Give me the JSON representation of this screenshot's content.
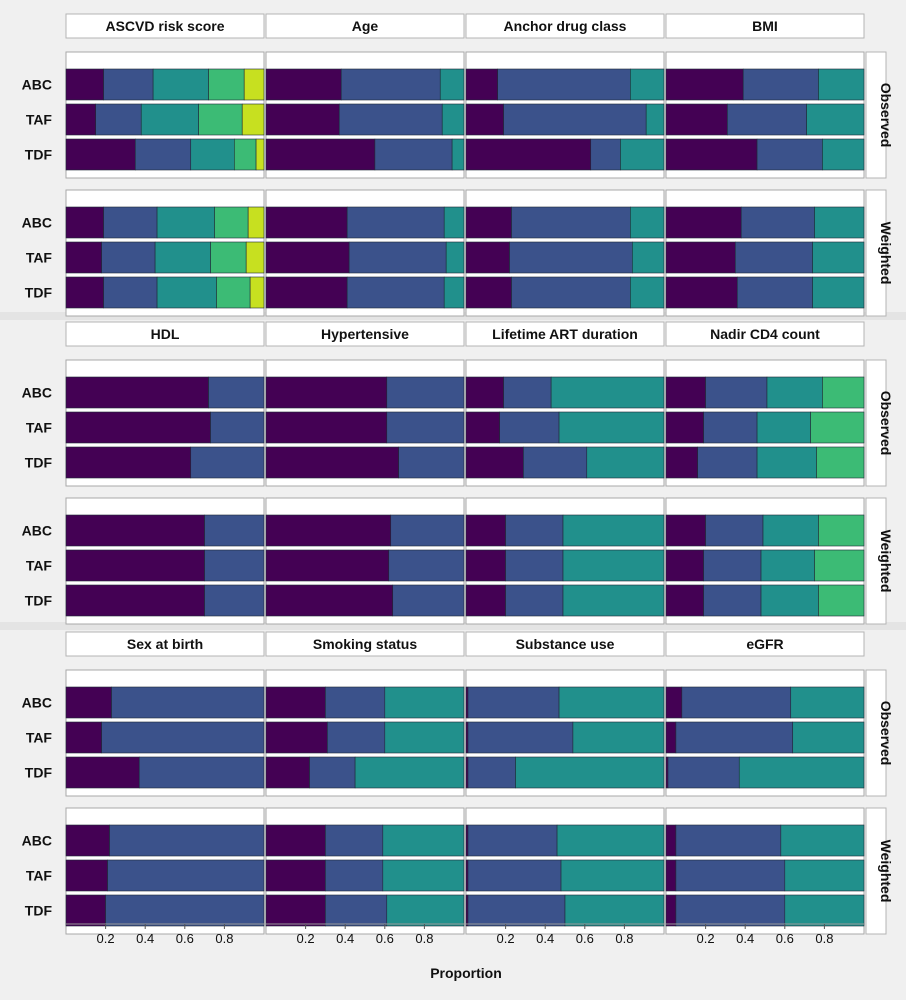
{
  "chart_data": {
    "type": "bar",
    "orientation": "horizontal",
    "stacked": true,
    "xlabel": "Proportion",
    "xlim": [
      0,
      1
    ],
    "x_ticks": [
      "0.2",
      "0.4",
      "0.6",
      "0.8"
    ],
    "x_tick_values": [
      0.2,
      0.4,
      0.6,
      0.8
    ],
    "categories": [
      "ABC",
      "TAF",
      "TDF"
    ],
    "row_strips": [
      "Observed",
      "Weighted"
    ],
    "palette": [
      "#440154",
      "#3b528b",
      "#21908c",
      "#3cbb75",
      "#c7e020"
    ],
    "panels": [
      {
        "title": "ASCVD risk score",
        "segments": 5,
        "Observed": {
          "ABC": [
            0.19,
            0.25,
            0.28,
            0.18,
            0.1
          ],
          "TAF": [
            0.15,
            0.23,
            0.29,
            0.22,
            0.11
          ],
          "TDF": [
            0.35,
            0.28,
            0.22,
            0.11,
            0.04
          ]
        },
        "Weighted": {
          "ABC": [
            0.19,
            0.27,
            0.29,
            0.17,
            0.08
          ],
          "TAF": [
            0.18,
            0.27,
            0.28,
            0.18,
            0.09
          ],
          "TDF": [
            0.19,
            0.27,
            0.3,
            0.17,
            0.07
          ]
        }
      },
      {
        "title": "Age",
        "segments": 3,
        "Observed": {
          "ABC": [
            0.38,
            0.5,
            0.12
          ],
          "TAF": [
            0.37,
            0.52,
            0.11
          ],
          "TDF": [
            0.55,
            0.39,
            0.06
          ]
        },
        "Weighted": {
          "ABC": [
            0.41,
            0.49,
            0.1
          ],
          "TAF": [
            0.42,
            0.49,
            0.09
          ],
          "TDF": [
            0.41,
            0.49,
            0.1
          ]
        }
      },
      {
        "title": "Anchor drug class",
        "segments": 3,
        "Observed": {
          "ABC": [
            0.16,
            0.67,
            0.17
          ],
          "TAF": [
            0.19,
            0.72,
            0.09
          ],
          "TDF": [
            0.63,
            0.15,
            0.22
          ]
        },
        "Weighted": {
          "ABC": [
            0.23,
            0.6,
            0.17
          ],
          "TAF": [
            0.22,
            0.62,
            0.16
          ],
          "TDF": [
            0.23,
            0.6,
            0.17
          ]
        }
      },
      {
        "title": "BMI",
        "segments": 3,
        "Observed": {
          "ABC": [
            0.39,
            0.38,
            0.23
          ],
          "TAF": [
            0.31,
            0.4,
            0.29
          ],
          "TDF": [
            0.46,
            0.33,
            0.21
          ]
        },
        "Weighted": {
          "ABC": [
            0.38,
            0.37,
            0.25
          ],
          "TAF": [
            0.35,
            0.39,
            0.26
          ],
          "TDF": [
            0.36,
            0.38,
            0.26
          ]
        }
      },
      {
        "title": "HDL",
        "segments": 2,
        "Observed": {
          "ABC": [
            0.72,
            0.28
          ],
          "TAF": [
            0.73,
            0.27
          ],
          "TDF": [
            0.63,
            0.37
          ]
        },
        "Weighted": {
          "ABC": [
            0.7,
            0.3
          ],
          "TAF": [
            0.7,
            0.3
          ],
          "TDF": [
            0.7,
            0.3
          ]
        }
      },
      {
        "title": "Hypertensive",
        "segments": 2,
        "Observed": {
          "ABC": [
            0.61,
            0.39
          ],
          "TAF": [
            0.61,
            0.39
          ],
          "TDF": [
            0.67,
            0.33
          ]
        },
        "Weighted": {
          "ABC": [
            0.63,
            0.37
          ],
          "TAF": [
            0.62,
            0.38
          ],
          "TDF": [
            0.64,
            0.36
          ]
        }
      },
      {
        "title": "Lifetime ART duration",
        "segments": 3,
        "Observed": {
          "ABC": [
            0.19,
            0.24,
            0.57
          ],
          "TAF": [
            0.17,
            0.3,
            0.53
          ],
          "TDF": [
            0.29,
            0.32,
            0.39
          ]
        },
        "Weighted": {
          "ABC": [
            0.2,
            0.29,
            0.51
          ],
          "TAF": [
            0.2,
            0.29,
            0.51
          ],
          "TDF": [
            0.2,
            0.29,
            0.51
          ]
        }
      },
      {
        "title": "Nadir CD4 count",
        "segments": 4,
        "Observed": {
          "ABC": [
            0.2,
            0.31,
            0.28,
            0.21
          ],
          "TAF": [
            0.19,
            0.27,
            0.27,
            0.27
          ],
          "TDF": [
            0.16,
            0.3,
            0.3,
            0.24
          ]
        },
        "Weighted": {
          "ABC": [
            0.2,
            0.29,
            0.28,
            0.23
          ],
          "TAF": [
            0.19,
            0.29,
            0.27,
            0.25
          ],
          "TDF": [
            0.19,
            0.29,
            0.29,
            0.23
          ]
        }
      },
      {
        "title": "Sex at birth",
        "segments": 2,
        "Observed": {
          "ABC": [
            0.23,
            0.77
          ],
          "TAF": [
            0.18,
            0.82
          ],
          "TDF": [
            0.37,
            0.63
          ]
        },
        "Weighted": {
          "ABC": [
            0.22,
            0.78
          ],
          "TAF": [
            0.21,
            0.79
          ],
          "TDF": [
            0.2,
            0.8
          ]
        }
      },
      {
        "title": "Smoking status",
        "segments": 3,
        "Observed": {
          "ABC": [
            0.3,
            0.3,
            0.4
          ],
          "TAF": [
            0.31,
            0.29,
            0.4
          ],
          "TDF": [
            0.22,
            0.23,
            0.55
          ]
        },
        "Weighted": {
          "ABC": [
            0.3,
            0.29,
            0.41
          ],
          "TAF": [
            0.3,
            0.29,
            0.41
          ],
          "TDF": [
            0.3,
            0.31,
            0.39
          ]
        }
      },
      {
        "title": "Substance use",
        "segments": 3,
        "Observed": {
          "ABC": [
            0.01,
            0.46,
            0.53
          ],
          "TAF": [
            0.01,
            0.53,
            0.46
          ],
          "TDF": [
            0.01,
            0.24,
            0.75
          ]
        },
        "Weighted": {
          "ABC": [
            0.01,
            0.45,
            0.54
          ],
          "TAF": [
            0.01,
            0.47,
            0.52
          ],
          "TDF": [
            0.01,
            0.49,
            0.5
          ]
        }
      },
      {
        "title": "eGFR",
        "segments": 3,
        "Observed": {
          "ABC": [
            0.08,
            0.55,
            0.37
          ],
          "TAF": [
            0.05,
            0.59,
            0.36
          ],
          "TDF": [
            0.01,
            0.36,
            0.63
          ]
        },
        "Weighted": {
          "ABC": [
            0.05,
            0.53,
            0.42
          ],
          "TAF": [
            0.05,
            0.55,
            0.4
          ],
          "TDF": [
            0.05,
            0.55,
            0.4
          ]
        }
      }
    ]
  }
}
